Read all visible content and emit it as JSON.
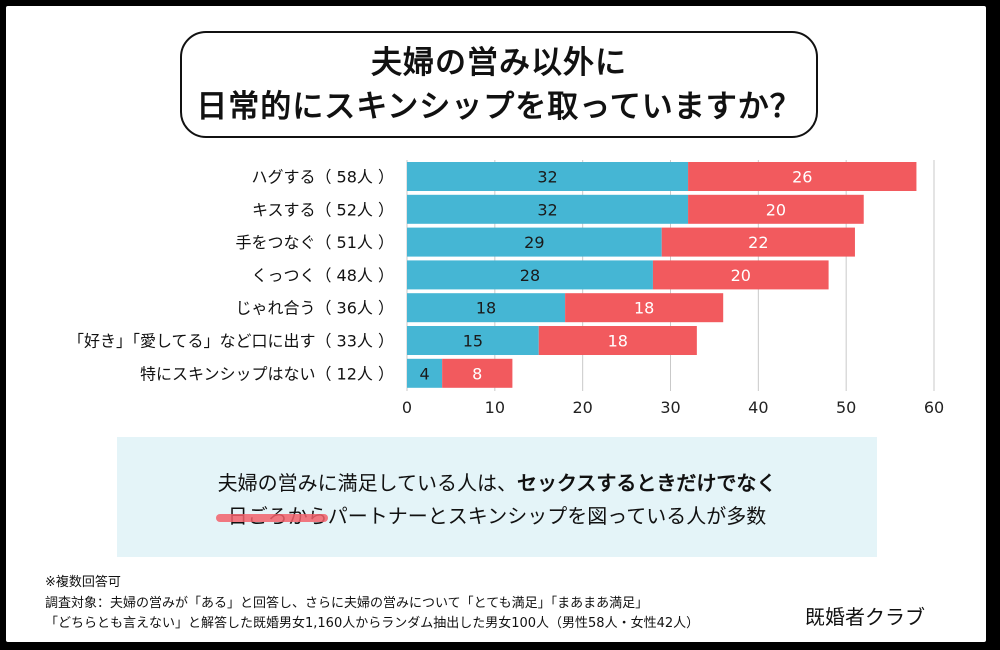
{
  "title": {
    "line1": "夫婦の営み以外に",
    "line2": "日常的にスキンシップを取っていますか？"
  },
  "chart_data": {
    "type": "bar",
    "orientation": "horizontal",
    "stacked": true,
    "categories": [
      "ハグする（ 58人 ）",
      "キスする（ 52人 ）",
      "手をつなぐ（ 51人 ）",
      "くっつく（ 48人 ）",
      "じゃれ合う（ 36人 ）",
      "「好き」「愛してる」など口に出す（ 33人 ）",
      "特にスキンシップはない（ 12人 ）"
    ],
    "series": [
      {
        "values": [
          32,
          32,
          29,
          28,
          18,
          15,
          4
        ],
        "color": "#45b6d4"
      },
      {
        "values": [
          26,
          20,
          22,
          20,
          18,
          18,
          8
        ],
        "color": "#f25a5e"
      }
    ],
    "xticks": [
      0,
      10,
      20,
      30,
      40,
      50,
      60
    ],
    "xlim": [
      0,
      60
    ],
    "grid": "vertical",
    "legend": "none"
  },
  "note": {
    "line1_prefix": "夫婦の営みに満足している人は、",
    "line1_bold": "セックスするときだけでなく",
    "line2": "日ごろからパートナーとスキンシップを図っている人が多数",
    "accent_color": "#f2606b"
  },
  "footnotes": {
    "line1": "※複数回答可",
    "line2": "調査対象：夫婦の営みが「ある」と回答し、さらに夫婦の営みについて「とても満足」「まあまあ満足」",
    "line3": "「どちらとも言えない」と解答した既婚男女1,160人からランダム抽出した男女100人（男性58人・女性42人）"
  },
  "brand": "既婚者クラブ"
}
